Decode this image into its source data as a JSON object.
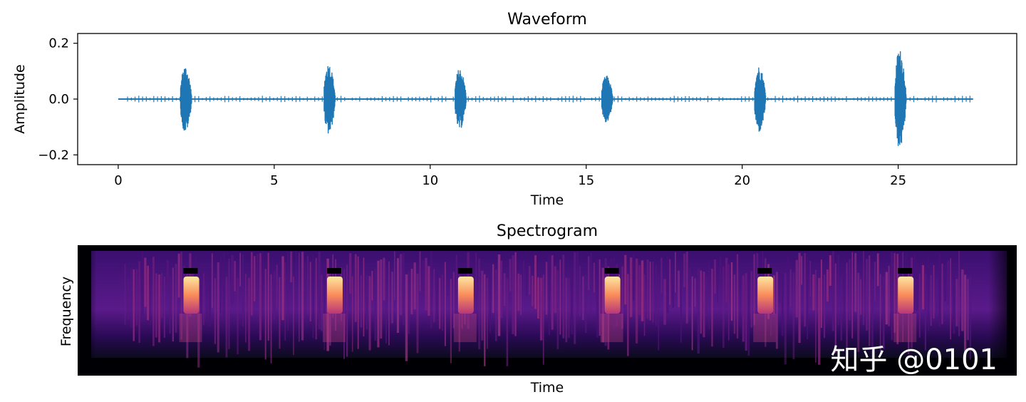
{
  "chart_data": [
    {
      "type": "line",
      "title": "Waveform",
      "xlabel": "Time",
      "ylabel": "Amplitude",
      "xlim": [
        -1.3,
        28.8
      ],
      "ylim": [
        -0.235,
        0.235
      ],
      "xticks": [
        0,
        5,
        10,
        15,
        20,
        25
      ],
      "xtick_labels": [
        "0",
        "5",
        "10",
        "15",
        "20",
        "25"
      ],
      "yticks": [
        -0.2,
        0.0,
        0.2
      ],
      "ytick_labels": [
        "−0.2",
        "0.0",
        "0.2"
      ],
      "grid": false,
      "color": "#1f77b4",
      "series": [
        {
          "x_start": 0,
          "x_end": 27.4,
          "bursts": [
            {
              "t": 2.0,
              "width": 0.6,
              "max": 0.14,
              "min": -0.14
            },
            {
              "t": 6.6,
              "width": 0.6,
              "max": 0.15,
              "min": -0.15
            },
            {
              "t": 10.8,
              "width": 0.6,
              "max": 0.13,
              "min": -0.13
            },
            {
              "t": 15.5,
              "width": 0.6,
              "max": 0.1,
              "min": -0.1
            },
            {
              "t": 20.4,
              "width": 0.6,
              "max": 0.14,
              "min": -0.14
            },
            {
              "t": 24.9,
              "width": 0.6,
              "max": 0.21,
              "min": -0.21
            }
          ],
          "noise_floor": 0.01
        }
      ]
    },
    {
      "type": "heatmap",
      "title": "Spectrogram",
      "xlabel": "Time",
      "ylabel": "Frequency",
      "colormap": "magma",
      "grid": false,
      "bright_events_time": [
        2.0,
        6.6,
        10.8,
        15.5,
        20.4,
        24.9
      ]
    }
  ],
  "watermark": {
    "text": "知乎 @0101"
  }
}
